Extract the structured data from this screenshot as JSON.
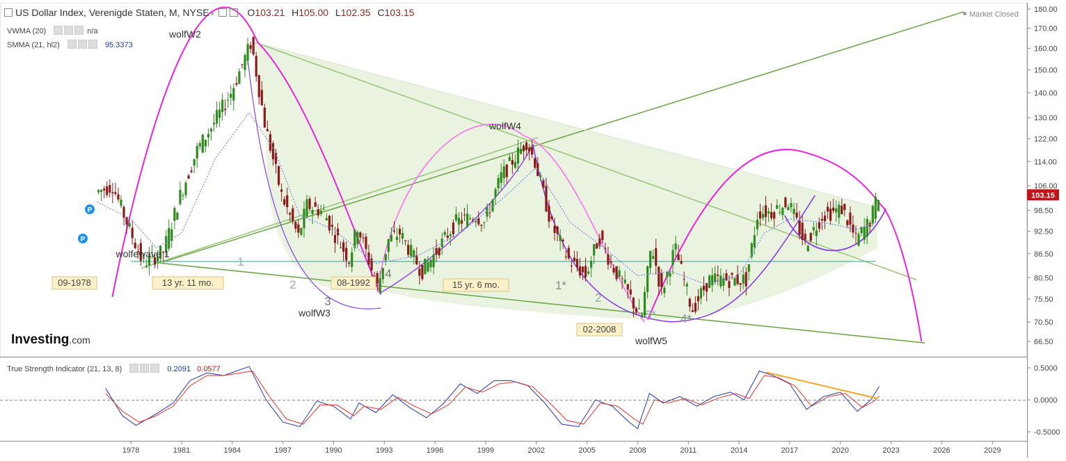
{
  "header": {
    "symbol": "US Dollar Index, Verenigde Staten, M, NYSE",
    "open_label": "O",
    "open": "103.21",
    "high_label": "H",
    "high": "105.00",
    "low_label": "L",
    "low": "102.35",
    "close_label": "C",
    "close": "103.15",
    "market_status": "Market Closed"
  },
  "indicators": {
    "vwma": {
      "label": "VWMA (20)",
      "value": "n/a"
    },
    "smma": {
      "label": "SMMA (21, hl2)",
      "value": "95.3373"
    },
    "tsi": {
      "label": "True Strength Indicator (21, 13, 8)",
      "value1": "0.2091",
      "value2": "0.0577"
    }
  },
  "logo": {
    "main": "Investing",
    "suffix": ".com"
  },
  "colors": {
    "up": "#2e8b1e",
    "down": "#8b1a1a",
    "magenta": "#ee22dd",
    "pink": "#ff6ff2",
    "purple": "#8a3ee8",
    "green_line": "#6fa84a",
    "light_green_line": "#9bc77a",
    "fill": "#eaf3e0",
    "teal": "#2aa198",
    "orange": "#f5a623",
    "tsi_blue": "#3246b4",
    "tsi_red": "#e0443c",
    "smma": "#7f8fe8"
  },
  "chart_data": [
    {
      "type": "candlestick",
      "title": "US Dollar Index, Verenigde Staten, M, NYSE",
      "x_ticks": [
        "1978",
        "1981",
        "1984",
        "1987",
        "1990",
        "1993",
        "1996",
        "1999",
        "2002",
        "2005",
        "2008",
        "2011",
        "2014",
        "2017",
        "2020",
        "2023",
        "2026",
        "2029"
      ],
      "y_ticks": [
        "180.00",
        "170.00",
        "160.00",
        "150.00",
        "140.00",
        "130.00",
        "122.00",
        "114.00",
        "106.00",
        "98.50",
        "92.50",
        "86.50",
        "80.50",
        "75.50",
        "70.50",
        "66.50"
      ],
      "y_scale": "log",
      "last_price": "103.15",
      "price_path": [
        [
          1976.0,
          104
        ],
        [
          1977.0,
          106
        ],
        [
          1978.0,
          93
        ],
        [
          1978.8,
          84
        ],
        [
          1980.0,
          87
        ],
        [
          1981.0,
          103
        ],
        [
          1982.0,
          118
        ],
        [
          1983.0,
          128
        ],
        [
          1984.0,
          140
        ],
        [
          1985.2,
          163
        ],
        [
          1986.0,
          128
        ],
        [
          1987.0,
          103
        ],
        [
          1988.0,
          91
        ],
        [
          1988.5,
          100
        ],
        [
          1989.5,
          98
        ],
        [
          1990.0,
          93
        ],
        [
          1991.0,
          85
        ],
        [
          1991.5,
          94
        ],
        [
          1992.7,
          78
        ],
        [
          1993.3,
          90
        ],
        [
          1994.0,
          92
        ],
        [
          1995.3,
          82
        ],
        [
          1996.0,
          86
        ],
        [
          1997.3,
          95
        ],
        [
          1998.5,
          97
        ],
        [
          1999.0,
          95
        ],
        [
          2000.0,
          109
        ],
        [
          2001.5,
          121
        ],
        [
          2002.0,
          114
        ],
        [
          2003.0,
          94
        ],
        [
          2004.0,
          85
        ],
        [
          2005.0,
          81
        ],
        [
          2005.8,
          91
        ],
        [
          2006.5,
          84
        ],
        [
          2007.5,
          77
        ],
        [
          2008.3,
          71
        ],
        [
          2008.9,
          89
        ],
        [
          2009.5,
          77
        ],
        [
          2010.3,
          88
        ],
        [
          2011.3,
          73
        ],
        [
          2012.3,
          80
        ],
        [
          2013.0,
          80
        ],
        [
          2014.0,
          80
        ],
        [
          2014.5,
          80
        ],
        [
          2015.2,
          98
        ],
        [
          2016.0,
          98
        ],
        [
          2017.0,
          101
        ],
        [
          2018.0,
          89
        ],
        [
          2019.0,
          97
        ],
        [
          2020.2,
          99
        ],
        [
          2021.0,
          90
        ],
        [
          2021.9,
          96
        ],
        [
          2022.3,
          103.15
        ]
      ],
      "smma_path": [
        [
          1976.0,
          101
        ],
        [
          1978.0,
          96
        ],
        [
          1979.5,
          88
        ],
        [
          1981.0,
          92
        ],
        [
          1983.0,
          115
        ],
        [
          1985.0,
          132
        ],
        [
          1986.5,
          118
        ],
        [
          1988.0,
          97
        ],
        [
          1990.0,
          93
        ],
        [
          1992.5,
          84
        ],
        [
          1995.0,
          86
        ],
        [
          1997.5,
          92
        ],
        [
          2000.0,
          102
        ],
        [
          2002.0,
          112
        ],
        [
          2004.0,
          95
        ],
        [
          2006.0,
          88
        ],
        [
          2008.0,
          81
        ],
        [
          2010.0,
          82
        ],
        [
          2012.0,
          79
        ],
        [
          2014.0,
          81
        ],
        [
          2015.5,
          92
        ],
        [
          2017.0,
          96
        ],
        [
          2019.0,
          95
        ],
        [
          2021.0,
          93
        ],
        [
          2022.3,
          95.34
        ]
      ],
      "annotations": [
        {
          "text": "wolfW2"
        },
        {
          "text": "wolfW3"
        },
        {
          "text": "wolfW4"
        },
        {
          "text": "wolfW5"
        },
        {
          "text": "wolfewave 1"
        },
        {
          "text": "1"
        },
        {
          "text": "2"
        },
        {
          "text": "3"
        },
        {
          "text": "4"
        },
        {
          "text": "1*"
        },
        {
          "text": "2"
        },
        {
          "text": "3*"
        },
        {
          "text": "4*"
        },
        {
          "text": "09-1978"
        },
        {
          "text": "13 yr. 11 mo."
        },
        {
          "text": "08-1992"
        },
        {
          "text": "15 yr. 6 mo."
        },
        {
          "text": "02-2008"
        }
      ],
      "markers": [
        {
          "text": "P"
        },
        {
          "text": "P"
        }
      ]
    },
    {
      "type": "line",
      "title": "True Strength Indicator (21, 13, 8)",
      "y_ticks": [
        "0.5000",
        "0.0000",
        "-0.5000"
      ],
      "series": [
        {
          "name": "0.2091",
          "points": [
            [
              1976.5,
              0.18
            ],
            [
              1977.5,
              -0.25
            ],
            [
              1978.3,
              -0.4
            ],
            [
              1979.5,
              -0.22
            ],
            [
              1980.5,
              -0.05
            ],
            [
              1981.5,
              0.3
            ],
            [
              1982.5,
              0.42
            ],
            [
              1983.5,
              0.38
            ],
            [
              1985.0,
              0.52
            ],
            [
              1986.0,
              0.0
            ],
            [
              1987.0,
              -0.35
            ],
            [
              1988.0,
              -0.42
            ],
            [
              1989.0,
              -0.02
            ],
            [
              1990.0,
              -0.1
            ],
            [
              1991.0,
              -0.3
            ],
            [
              1991.5,
              -0.05
            ],
            [
              1992.5,
              -0.2
            ],
            [
              1993.5,
              0.08
            ],
            [
              1994.5,
              -0.12
            ],
            [
              1995.5,
              -0.28
            ],
            [
              1996.5,
              -0.06
            ],
            [
              1997.5,
              0.25
            ],
            [
              1998.5,
              0.1
            ],
            [
              1999.5,
              0.3
            ],
            [
              2000.5,
              0.3
            ],
            [
              2001.5,
              0.22
            ],
            [
              2002.5,
              -0.05
            ],
            [
              2003.5,
              -0.38
            ],
            [
              2004.5,
              -0.42
            ],
            [
              2005.5,
              0.0
            ],
            [
              2006.5,
              -0.1
            ],
            [
              2007.5,
              -0.35
            ],
            [
              2008.0,
              -0.45
            ],
            [
              2008.7,
              0.1
            ],
            [
              2009.5,
              -0.05
            ],
            [
              2010.5,
              0.05
            ],
            [
              2011.5,
              -0.1
            ],
            [
              2012.5,
              0.05
            ],
            [
              2013.5,
              0.12
            ],
            [
              2014.3,
              0.0
            ],
            [
              2015.2,
              0.45
            ],
            [
              2016.0,
              0.38
            ],
            [
              2017.0,
              0.25
            ],
            [
              2018.0,
              -0.15
            ],
            [
              2019.0,
              0.05
            ],
            [
              2020.0,
              0.12
            ],
            [
              2021.0,
              -0.18
            ],
            [
              2021.8,
              0.0
            ],
            [
              2022.3,
              0.21
            ]
          ]
        },
        {
          "name": "0.0577",
          "points": [
            [
              1976.5,
              0.1
            ],
            [
              1977.5,
              -0.18
            ],
            [
              1978.5,
              -0.35
            ],
            [
              1979.5,
              -0.25
            ],
            [
              1980.5,
              -0.1
            ],
            [
              1981.5,
              0.22
            ],
            [
              1982.5,
              0.38
            ],
            [
              1983.5,
              0.38
            ],
            [
              1985.2,
              0.45
            ],
            [
              1986.2,
              0.05
            ],
            [
              1987.2,
              -0.3
            ],
            [
              1988.2,
              -0.38
            ],
            [
              1989.2,
              -0.08
            ],
            [
              1990.2,
              -0.08
            ],
            [
              1991.2,
              -0.25
            ],
            [
              1991.8,
              -0.1
            ],
            [
              1992.8,
              -0.15
            ],
            [
              1993.8,
              0.04
            ],
            [
              1994.8,
              -0.1
            ],
            [
              1995.8,
              -0.22
            ],
            [
              1996.8,
              -0.08
            ],
            [
              1997.8,
              0.2
            ],
            [
              1998.8,
              0.12
            ],
            [
              1999.8,
              0.25
            ],
            [
              2000.8,
              0.28
            ],
            [
              2001.8,
              0.2
            ],
            [
              2002.8,
              -0.05
            ],
            [
              2003.8,
              -0.32
            ],
            [
              2004.8,
              -0.38
            ],
            [
              2005.8,
              -0.05
            ],
            [
              2006.8,
              -0.1
            ],
            [
              2007.8,
              -0.3
            ],
            [
              2008.3,
              -0.38
            ],
            [
              2009.0,
              0.0
            ],
            [
              2009.8,
              -0.05
            ],
            [
              2010.8,
              0.02
            ],
            [
              2011.8,
              -0.08
            ],
            [
              2012.8,
              0.03
            ],
            [
              2013.8,
              0.1
            ],
            [
              2014.6,
              0.02
            ],
            [
              2015.5,
              0.38
            ],
            [
              2016.3,
              0.35
            ],
            [
              2017.3,
              0.22
            ],
            [
              2018.3,
              -0.1
            ],
            [
              2019.3,
              0.05
            ],
            [
              2020.3,
              0.1
            ],
            [
              2021.3,
              -0.12
            ],
            [
              2022.0,
              -0.02
            ],
            [
              2022.3,
              0.06
            ]
          ]
        }
      ]
    }
  ]
}
